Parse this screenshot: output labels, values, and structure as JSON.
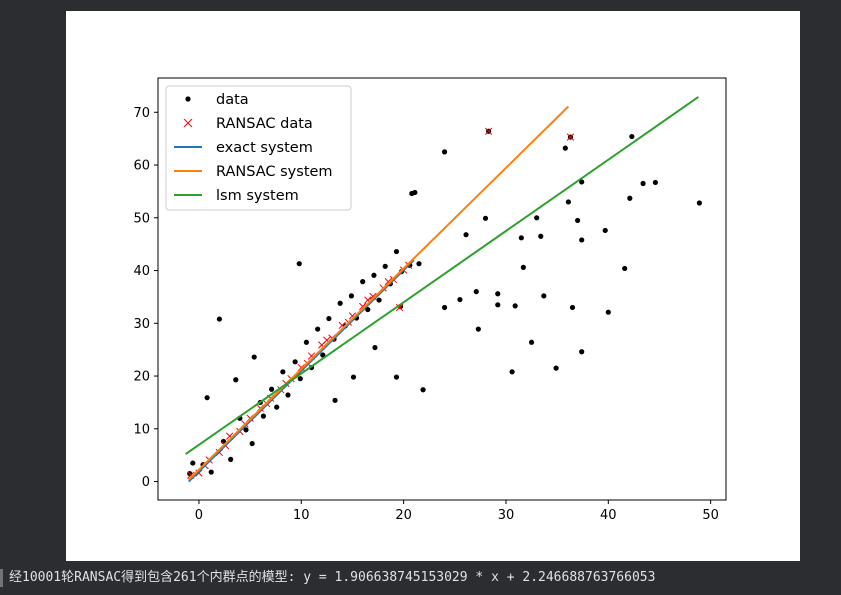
{
  "console": {
    "output": "经10001轮RANSAC得到包含261个内群点的模型: y = 1.906638745153029 * x + 2.246688763766053"
  },
  "chart_data": {
    "type": "scatter",
    "title": "",
    "xlabel": "",
    "ylabel": "",
    "xlim": [
      -4,
      51.5
    ],
    "ylim": [
      -3.5,
      76.5
    ],
    "xticks": [
      0,
      10,
      20,
      30,
      40,
      50
    ],
    "yticks": [
      0,
      10,
      20,
      30,
      40,
      50,
      60,
      70
    ],
    "grid": false,
    "legend_position": "top-left",
    "colors": {
      "data": "#000000",
      "ransac_data": "#ff0000",
      "exact_system": "#1f77b4",
      "ransac_system": "#ff7f0e",
      "lsm_system": "#2ca02c"
    },
    "legend": [
      "data",
      "RANSAC data",
      "exact system",
      "RANSAC system",
      "lsm system"
    ],
    "series": [
      {
        "name": "data",
        "marker": "dot",
        "points": [
          [
            2.0,
            30.8
          ],
          [
            0.8,
            15.9
          ],
          [
            3.6,
            19.3
          ],
          [
            5.4,
            23.6
          ],
          [
            9.8,
            41.3
          ],
          [
            13.3,
            15.4
          ],
          [
            15.1,
            19.8
          ],
          [
            17.2,
            25.4
          ],
          [
            19.3,
            19.8
          ],
          [
            21.9,
            17.4
          ],
          [
            20.8,
            54.6
          ],
          [
            21.1,
            54.8
          ],
          [
            24.0,
            62.5
          ],
          [
            24.0,
            33.0
          ],
          [
            25.5,
            34.5
          ],
          [
            26.1,
            46.8
          ],
          [
            27.1,
            36.0
          ],
          [
            27.3,
            28.9
          ],
          [
            28.0,
            49.9
          ],
          [
            28.3,
            66.4
          ],
          [
            29.2,
            35.6
          ],
          [
            29.2,
            33.5
          ],
          [
            30.6,
            20.8
          ],
          [
            30.9,
            33.3
          ],
          [
            31.5,
            46.2
          ],
          [
            31.7,
            40.6
          ],
          [
            32.5,
            26.4
          ],
          [
            33.0,
            50.0
          ],
          [
            33.4,
            46.5
          ],
          [
            33.7,
            35.2
          ],
          [
            34.9,
            21.5
          ],
          [
            35.8,
            63.2
          ],
          [
            36.1,
            53.0
          ],
          [
            36.3,
            65.3
          ],
          [
            36.5,
            33.0
          ],
          [
            37.0,
            49.5
          ],
          [
            37.4,
            56.8
          ],
          [
            37.4,
            45.8
          ],
          [
            37.4,
            24.6
          ],
          [
            39.7,
            47.6
          ],
          [
            40.0,
            32.1
          ],
          [
            41.6,
            40.4
          ],
          [
            42.1,
            53.7
          ],
          [
            42.3,
            65.4
          ],
          [
            43.4,
            56.5
          ],
          [
            44.6,
            56.7
          ],
          [
            48.9,
            52.8
          ],
          [
            -0.9,
            1.5
          ],
          [
            -0.6,
            3.5
          ],
          [
            0.4,
            3.2
          ],
          [
            1.2,
            1.8
          ],
          [
            2.4,
            7.6
          ],
          [
            3.1,
            4.2
          ],
          [
            4.0,
            12.0
          ],
          [
            4.6,
            9.8
          ],
          [
            5.2,
            7.2
          ],
          [
            6.0,
            15.0
          ],
          [
            6.3,
            12.4
          ],
          [
            7.1,
            17.5
          ],
          [
            7.6,
            14.1
          ],
          [
            8.2,
            20.8
          ],
          [
            8.7,
            16.4
          ],
          [
            9.4,
            22.7
          ],
          [
            9.9,
            19.5
          ],
          [
            10.5,
            26.4
          ],
          [
            11.0,
            21.6
          ],
          [
            11.6,
            28.9
          ],
          [
            12.1,
            24.0
          ],
          [
            12.7,
            30.9
          ],
          [
            13.2,
            27.0
          ],
          [
            13.8,
            33.8
          ],
          [
            14.3,
            29.5
          ],
          [
            14.9,
            35.2
          ],
          [
            15.4,
            31.0
          ],
          [
            16.0,
            37.9
          ],
          [
            16.5,
            32.6
          ],
          [
            17.1,
            39.1
          ],
          [
            17.6,
            34.4
          ],
          [
            18.2,
            40.8
          ],
          [
            18.7,
            37.5
          ],
          [
            19.3,
            43.6
          ],
          [
            19.8,
            39.8
          ],
          [
            20.6,
            41.0
          ],
          [
            21.5,
            41.3
          ],
          [
            19.7,
            33.2
          ]
        ]
      },
      {
        "name": "RANSAC data",
        "marker": "x",
        "points": [
          [
            -0.8,
            1.2
          ],
          [
            0.0,
            1.6
          ],
          [
            1.0,
            4.1
          ],
          [
            2.0,
            5.5
          ],
          [
            3.0,
            8.6
          ],
          [
            4.0,
            9.5
          ],
          [
            5.0,
            12.0
          ],
          [
            6.0,
            13.9
          ],
          [
            7.0,
            15.8
          ],
          [
            8.0,
            17.4
          ],
          [
            9.0,
            19.5
          ],
          [
            10.0,
            21.6
          ],
          [
            11.0,
            23.8
          ],
          [
            12.0,
            25.9
          ],
          [
            13.0,
            27.2
          ],
          [
            14.0,
            29.6
          ],
          [
            15.0,
            31.4
          ],
          [
            16.0,
            33.2
          ],
          [
            17.0,
            35.1
          ],
          [
            18.0,
            36.7
          ],
          [
            19.0,
            38.3
          ],
          [
            20.0,
            40.1
          ],
          [
            20.5,
            41.0
          ],
          [
            19.6,
            33.0
          ],
          [
            28.3,
            66.4
          ],
          [
            36.3,
            65.3
          ],
          [
            0.6,
            3.0
          ],
          [
            2.6,
            6.8
          ],
          [
            4.5,
            10.9
          ],
          [
            6.6,
            14.8
          ],
          [
            8.5,
            18.6
          ],
          [
            10.6,
            22.4
          ],
          [
            12.5,
            26.8
          ],
          [
            14.6,
            30.2
          ],
          [
            16.5,
            34.4
          ],
          [
            18.5,
            37.9
          ]
        ]
      }
    ],
    "lines": [
      {
        "name": "exact system",
        "x": [
          -1.0,
          21.0
        ],
        "y": [
          0.0,
          42.0
        ]
      },
      {
        "name": "RANSAC system",
        "x": [
          -1.0,
          36.1
        ],
        "y": [
          0.34,
          71.1
        ]
      },
      {
        "name": "lsm system",
        "x": [
          -1.3,
          48.8
        ],
        "y": [
          5.2,
          72.9
        ]
      }
    ]
  }
}
